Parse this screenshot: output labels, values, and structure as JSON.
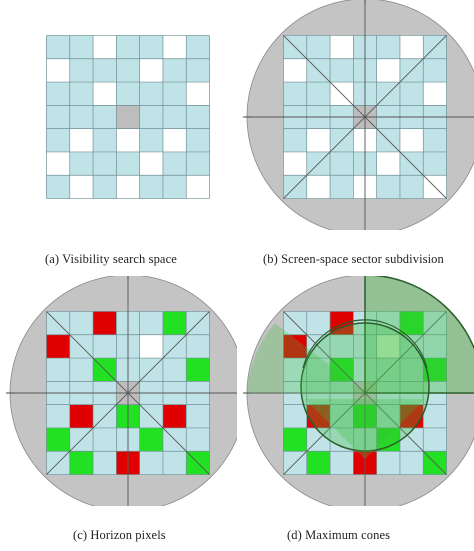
{
  "colors": {
    "cell": "#bfe3e7",
    "empty": "#ffffff",
    "center": "#bdbdbd",
    "disc": "#c4c4c4",
    "red": "#e00000",
    "green": "#22e022",
    "cone": "#2ea82e"
  },
  "panels": [
    {
      "id": "a",
      "caption": "(a)  Visibility search space",
      "circle": false,
      "cones": false
    },
    {
      "id": "b",
      "caption": "(b)  Screen-space sector subdivision",
      "circle": true,
      "cones": false
    },
    {
      "id": "c",
      "caption": "(c)  Horizon pixels",
      "circle": true,
      "cones": false
    },
    {
      "id": "d",
      "caption": "(d)  Maximum cones",
      "circle": true,
      "cones": true
    }
  ],
  "grid": {
    "rows": 7,
    "cols": 7,
    "white_cells": [
      [
        0,
        2
      ],
      [
        0,
        5
      ],
      [
        1,
        0
      ],
      [
        1,
        4
      ],
      [
        2,
        2
      ],
      [
        2,
        6
      ],
      [
        4,
        1
      ],
      [
        4,
        3
      ],
      [
        4,
        5
      ],
      [
        5,
        0
      ],
      [
        5,
        4
      ],
      [
        6,
        1
      ],
      [
        6,
        3
      ],
      [
        6,
        6
      ]
    ],
    "center_cell": [
      3,
      3
    ]
  },
  "horizon_cells": {
    "red": [
      [
        0,
        2
      ],
      [
        1,
        0
      ],
      [
        4,
        1
      ],
      [
        4,
        5
      ],
      [
        6,
        3
      ]
    ],
    "green": [
      [
        0,
        5
      ],
      [
        2,
        2
      ],
      [
        2,
        6
      ],
      [
        4,
        3
      ],
      [
        5,
        0
      ],
      [
        5,
        4
      ],
      [
        6,
        1
      ],
      [
        6,
        6
      ]
    ]
  }
}
